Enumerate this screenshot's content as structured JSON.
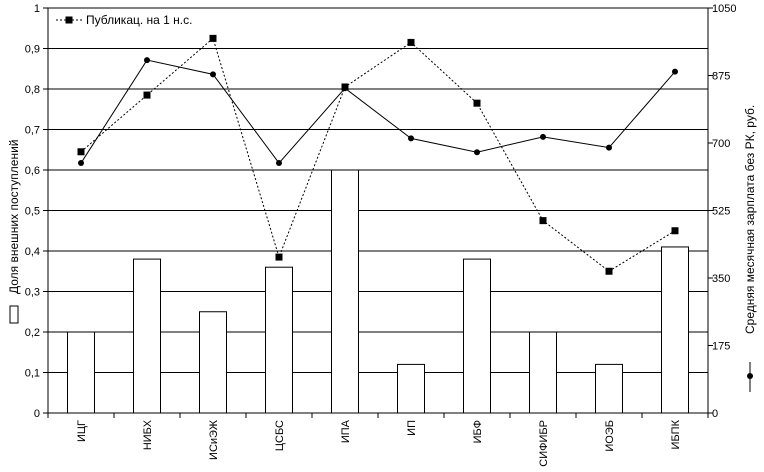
{
  "chart_data": {
    "type": "bar",
    "categories": [
      "ИЦГ",
      "НИБХ",
      "ИСиЭЖ",
      "ЦСБС",
      "ИПА",
      "ИП",
      "ИБФ",
      "СИФИБР",
      "ИОЭБ",
      "ИБПК"
    ],
    "ylabel": "Доля внешних поступлений",
    "y2label": "Средняя месячная зарплата без РК,  руб.",
    "ylim": [
      0,
      1
    ],
    "y2lim": [
      0,
      1050
    ],
    "yticks": [
      "0",
      "0,1",
      "0,2",
      "0,3",
      "0,4",
      "0,5",
      "0,6",
      "0,7",
      "0,8",
      "0,9",
      "1"
    ],
    "y2ticks": [
      "0",
      "175",
      "350",
      "525",
      "700",
      "875",
      "1050"
    ],
    "grid": true,
    "legend_position": "top-left",
    "series": [
      {
        "kind": "bar",
        "axis": "left",
        "values": [
          0.2,
          0.38,
          0.25,
          0.36,
          0.6,
          0.12,
          0.38,
          0.2,
          0.12,
          0.41
        ]
      },
      {
        "kind": "line",
        "axis": "left",
        "name": "Публикац. на 1 н.с.",
        "style": "dotted-square",
        "values": [
          0.645,
          0.785,
          0.925,
          0.385,
          0.805,
          0.915,
          0.765,
          0.475,
          0.35,
          0.45
        ]
      },
      {
        "kind": "line",
        "axis": "right",
        "style": "solid-diamond",
        "values": [
          648,
          915,
          878,
          648,
          842,
          712,
          676,
          716,
          688,
          885
        ]
      }
    ]
  }
}
